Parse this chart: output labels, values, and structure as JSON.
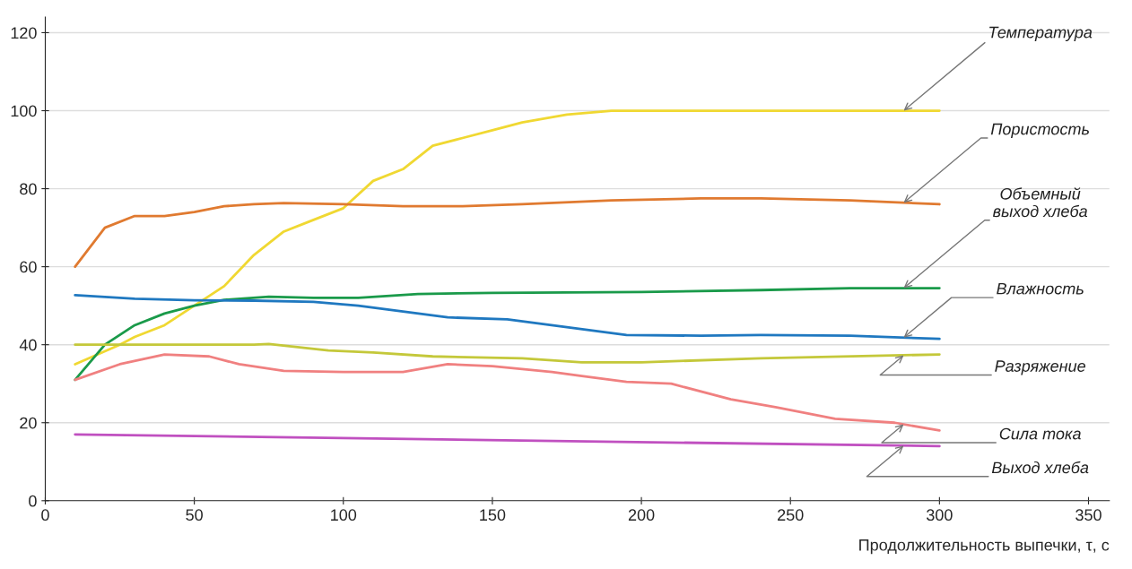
{
  "chart_data": {
    "type": "line",
    "xlabel": "Продолжительность выпечки, τ, с",
    "xlim": [
      0,
      357
    ],
    "xticks": [
      0,
      50,
      100,
      150,
      200,
      250,
      300,
      350
    ],
    "ylim": [
      0,
      124
    ],
    "yticks": [
      0,
      20,
      40,
      60,
      80,
      100,
      120
    ],
    "grid": "y",
    "legend": false,
    "marker": "none",
    "line_style": "solid",
    "series": [
      {
        "name": "Температура",
        "color": "#f0d832",
        "x": [
          10,
          25,
          30,
          40,
          50,
          60,
          70,
          80,
          90,
          100,
          110,
          120,
          130,
          140,
          150,
          160,
          175,
          190,
          300
        ],
        "values": [
          35,
          40,
          42,
          45,
          50,
          55,
          63,
          69,
          72,
          75,
          82,
          85,
          91,
          93,
          95,
          97,
          99,
          100,
          100
        ]
      },
      {
        "name": "Пористость",
        "color": "#e07a30",
        "x": [
          10,
          20,
          30,
          40,
          50,
          60,
          70,
          80,
          100,
          120,
          140,
          160,
          190,
          220,
          240,
          270,
          300
        ],
        "values": [
          60,
          70,
          73,
          73,
          74,
          75.5,
          76,
          76.3,
          76,
          75.5,
          75.5,
          76,
          77,
          77.5,
          77.5,
          77,
          76
        ]
      },
      {
        "name": "Объемный\nвыход хлеба",
        "color": "#1a9a4a",
        "x": [
          10,
          20,
          30,
          40,
          50,
          60,
          75,
          90,
          105,
          125,
          150,
          200,
          240,
          270,
          300
        ],
        "values": [
          31,
          40,
          45,
          48,
          50,
          51.5,
          52.3,
          52,
          52,
          53,
          53.3,
          53.5,
          54,
          54.5,
          54.5
        ]
      },
      {
        "name": "Влажность",
        "color": "#1f78c0",
        "x": [
          10,
          30,
          50,
          70,
          90,
          105,
          120,
          135,
          155,
          175,
          195,
          220,
          240,
          270,
          300
        ],
        "values": [
          52.7,
          51.8,
          51.4,
          51.3,
          51,
          50,
          48.5,
          47,
          46.5,
          44.5,
          42.5,
          42.3,
          42.5,
          42.3,
          41.5
        ]
      },
      {
        "name": "Разряжение",
        "color": "#c4c83a",
        "x": [
          10,
          40,
          70,
          75,
          95,
          110,
          130,
          160,
          180,
          200,
          240,
          300
        ],
        "values": [
          40,
          40,
          40,
          40.2,
          38.5,
          38,
          37,
          36.5,
          35.5,
          35.5,
          36.5,
          37.5
        ]
      },
      {
        "name": "Сила тока",
        "color": "#f08080",
        "x": [
          10,
          25,
          40,
          55,
          65,
          80,
          100,
          120,
          135,
          150,
          170,
          180,
          195,
          210,
          230,
          245,
          265,
          285,
          300
        ],
        "values": [
          31,
          35,
          37.5,
          37,
          35,
          33.3,
          33,
          33,
          35,
          34.5,
          33,
          32,
          30.5,
          30,
          26,
          24,
          21,
          20,
          18
        ]
      },
      {
        "name": "Выход хлеба",
        "color": "#c050c0",
        "x": [
          10,
          300
        ],
        "values": [
          17,
          14
        ]
      }
    ]
  }
}
